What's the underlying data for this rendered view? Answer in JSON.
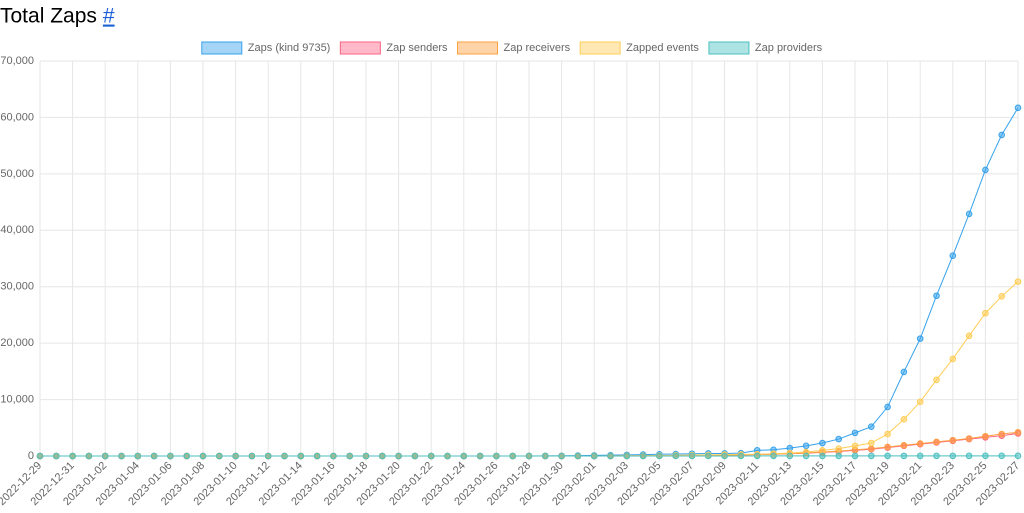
{
  "header": {
    "title": "Total Zaps",
    "link": "#"
  },
  "chart_data": {
    "type": "line",
    "categories": [
      "2022-12-29",
      null,
      "2022-12-31",
      null,
      "2023-01-02",
      null,
      "2023-01-04",
      null,
      "2023-01-06",
      null,
      "2023-01-08",
      null,
      "2023-01-10",
      null,
      "2023-01-12",
      null,
      "2023-01-14",
      null,
      "2023-01-16",
      null,
      "2023-01-18",
      null,
      "2023-01-20",
      null,
      "2023-01-22",
      null,
      "2023-01-24",
      null,
      "2023-01-26",
      null,
      "2023-01-28",
      null,
      "2023-01-30",
      null,
      "2023-02-01",
      null,
      "2023-02-03",
      null,
      "2023-02-05",
      null,
      "2023-02-07",
      null,
      "2023-02-09",
      null,
      "2023-02-11",
      null,
      "2023-02-13",
      null,
      "2023-02-15",
      null,
      "2023-02-17",
      null,
      "2023-02-19",
      null,
      "2023-02-21",
      null,
      "2023-02-23",
      null,
      "2023-02-25",
      null,
      "2023-02-27"
    ],
    "series": [
      {
        "name": "Zaps (kind 9735)",
        "color": "#36a2eb",
        "values": [
          0,
          0,
          0,
          0,
          0,
          0,
          0,
          0,
          0,
          0,
          0,
          0,
          0,
          0,
          0,
          0,
          0,
          0,
          0,
          0,
          0,
          0,
          0,
          0,
          0,
          0,
          0,
          0,
          0,
          0,
          10,
          20,
          40,
          70,
          100,
          150,
          200,
          250,
          300,
          350,
          400,
          450,
          450,
          500,
          1000,
          1100,
          1400,
          1800,
          2300,
          3000,
          4100,
          5200,
          8700,
          14900,
          20800,
          28400,
          35500,
          42900,
          50700,
          56900,
          61700
        ]
      },
      {
        "name": "Zap senders",
        "color": "#ff6384",
        "values": [
          0,
          0,
          0,
          0,
          0,
          0,
          0,
          0,
          0,
          0,
          0,
          0,
          0,
          0,
          0,
          0,
          0,
          0,
          0,
          0,
          0,
          0,
          0,
          0,
          0,
          0,
          0,
          0,
          0,
          0,
          0,
          0,
          0,
          0,
          0,
          0,
          20,
          40,
          60,
          80,
          100,
          120,
          150,
          200,
          250,
          300,
          400,
          500,
          650,
          800,
          1000,
          1200,
          1500,
          1800,
          2100,
          2400,
          2700,
          3000,
          3300,
          3600,
          4000
        ]
      },
      {
        "name": "Zap receivers",
        "color": "#ff9f40",
        "values": [
          0,
          0,
          0,
          0,
          0,
          0,
          0,
          0,
          0,
          0,
          0,
          0,
          0,
          0,
          0,
          0,
          0,
          0,
          0,
          0,
          0,
          0,
          0,
          0,
          0,
          0,
          0,
          0,
          0,
          0,
          0,
          0,
          0,
          0,
          0,
          0,
          20,
          40,
          60,
          90,
          110,
          130,
          160,
          210,
          270,
          330,
          430,
          540,
          700,
          860,
          1080,
          1300,
          1600,
          1900,
          2200,
          2500,
          2800,
          3100,
          3500,
          3900,
          4200
        ]
      },
      {
        "name": "Zapped events",
        "color": "#ffcd56",
        "values": [
          0,
          0,
          0,
          0,
          0,
          0,
          0,
          0,
          0,
          0,
          0,
          0,
          0,
          0,
          0,
          0,
          0,
          0,
          0,
          0,
          0,
          0,
          0,
          0,
          0,
          0,
          0,
          0,
          0,
          0,
          0,
          0,
          0,
          0,
          10,
          20,
          40,
          60,
          90,
          120,
          160,
          200,
          250,
          280,
          300,
          400,
          500,
          700,
          1000,
          1300,
          1800,
          2300,
          3900,
          6500,
          9600,
          13500,
          17200,
          21300,
          25300,
          28300,
          30900
        ]
      },
      {
        "name": "Zap providers",
        "color": "#4bc0c0",
        "values": [
          0,
          0,
          0,
          0,
          0,
          0,
          0,
          0,
          0,
          0,
          0,
          0,
          0,
          0,
          0,
          0,
          0,
          0,
          0,
          0,
          0,
          0,
          0,
          0,
          0,
          0,
          0,
          0,
          0,
          0,
          0,
          0,
          0,
          0,
          0,
          0,
          0,
          0,
          5,
          5,
          8,
          9,
          10,
          11,
          12,
          13,
          14,
          15,
          16,
          17,
          18,
          19,
          20,
          21,
          22,
          23,
          24,
          25,
          26,
          27,
          28
        ]
      }
    ],
    "ylim": [
      0,
      70000
    ],
    "yticks": [
      0,
      {
        "value": 10000,
        "label": "10,000"
      },
      {
        "value": 20000,
        "label": "20,000"
      },
      {
        "value": 30000,
        "label": "30,000"
      },
      {
        "value": 40000,
        "label": "40,000"
      },
      {
        "value": 50000,
        "label": "50,000"
      },
      {
        "value": 60000,
        "label": "60,000"
      },
      {
        "value": 70000,
        "label": "70,000"
      }
    ],
    "grid": true,
    "legend": "top"
  }
}
